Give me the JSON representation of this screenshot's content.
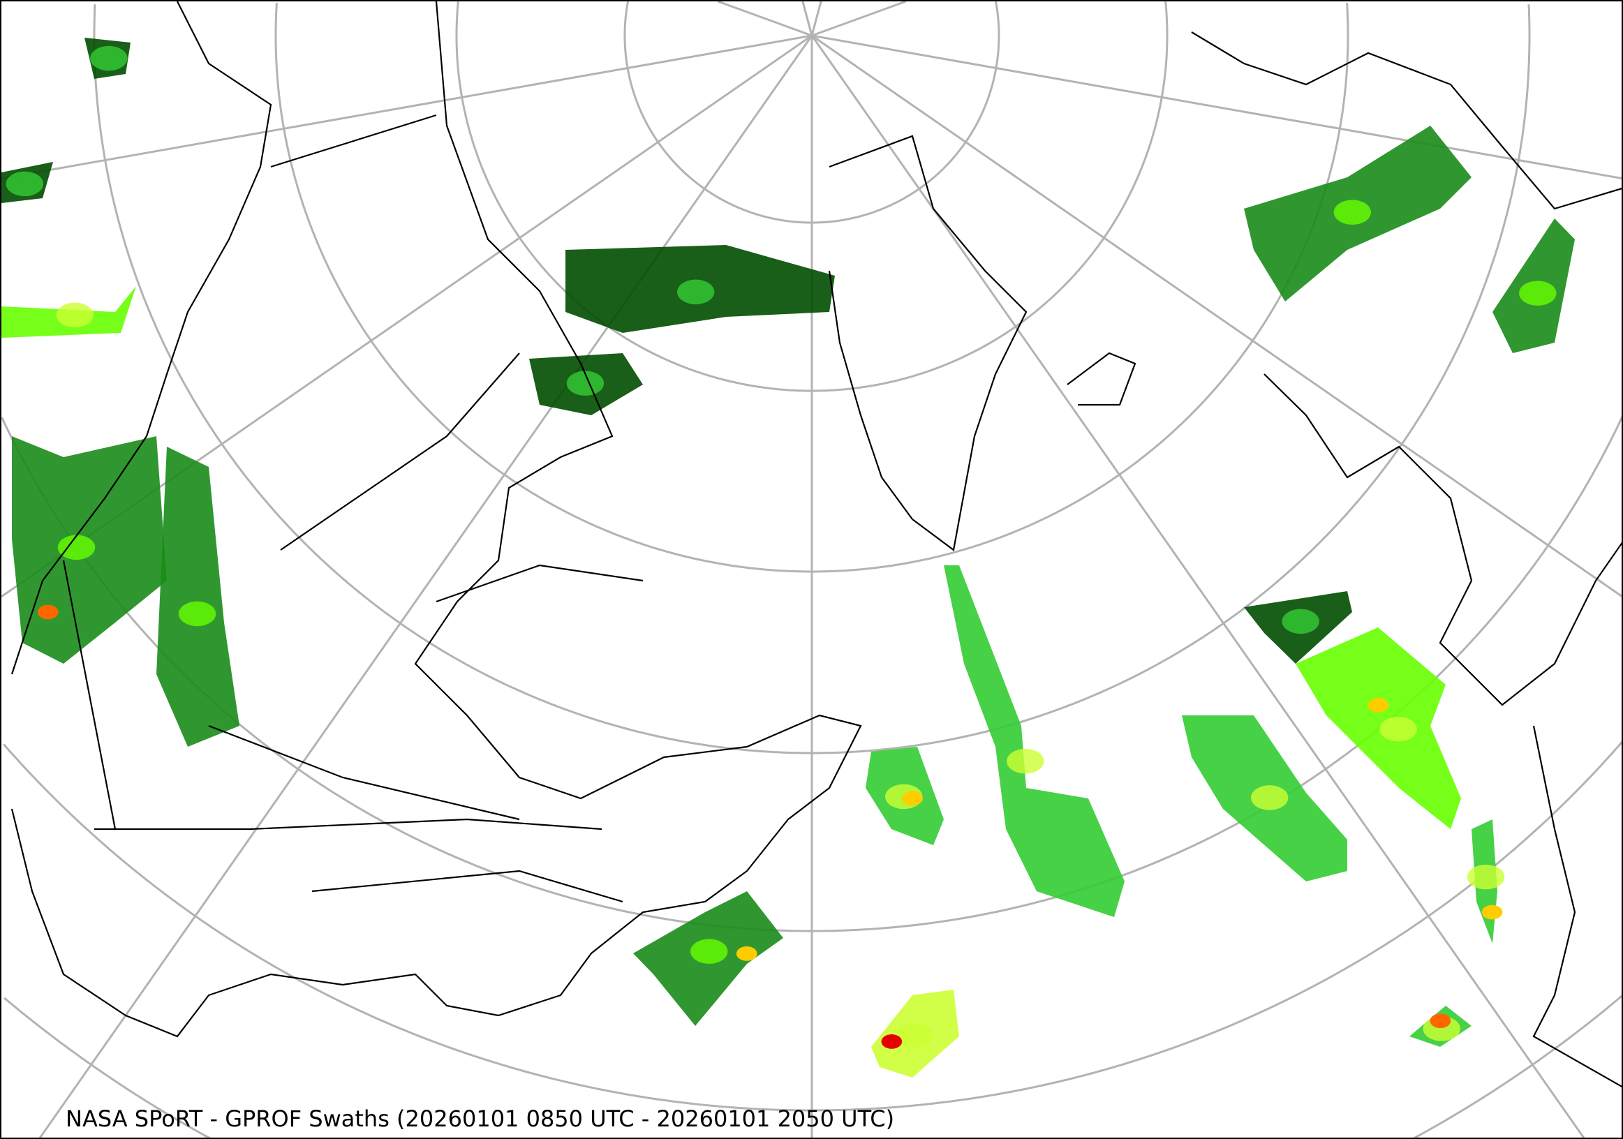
{
  "title": "NASA SPoRT - GPROF Swaths (20260101 0850 UTC - 20260101 2050 UTC)",
  "map": {
    "projection": "north-polar-stereographic",
    "graticule_color": "#b3b3b3",
    "coastline_color": "#000000",
    "precip_colors": [
      "#004d00",
      "#1a8c1a",
      "#33cc33",
      "#66ff00",
      "#ccff33",
      "#ffcc00",
      "#ff6600",
      "#e60000"
    ]
  }
}
